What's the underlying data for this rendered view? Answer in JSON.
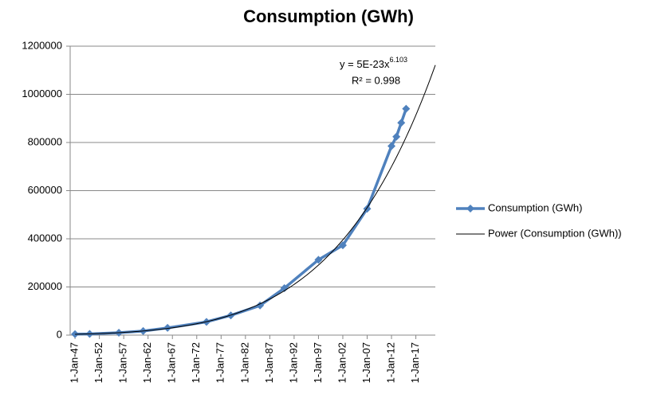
{
  "chart_data": {
    "type": "line",
    "title": "Consumption (GWh)",
    "x": [
      "1947-01-01",
      "1950-01-01",
      "1956-01-01",
      "1961-01-01",
      "1966-01-01",
      "1974-01-01",
      "1979-01-01",
      "1985-01-01",
      "1990-01-01",
      "1997-01-01",
      "2002-01-01",
      "2007-01-01",
      "2012-01-01",
      "2013-01-01",
      "2014-01-01",
      "2015-01-01"
    ],
    "series": [
      {
        "name": "Consumption (GWh)",
        "color": "#4f81bd",
        "values": [
          4000,
          5000,
          10000,
          17000,
          30000,
          55000,
          82000,
          123000,
          195000,
          313000,
          373000,
          525000,
          785000,
          824000,
          882000,
          940000
        ]
      }
    ],
    "trendline": {
      "name": "Power (Consumption (GWh))",
      "color": "#000000",
      "equation": "y = 5E-23x",
      "exponent": "6.103",
      "r_squared": "R² = 0.998"
    },
    "xlim": [
      "1946-01-01",
      "2021-01-01"
    ],
    "xticks": [
      {
        "value": "1947-01-01",
        "label": "1-Jan-47"
      },
      {
        "value": "1952-01-01",
        "label": "1-Jan-52"
      },
      {
        "value": "1957-01-01",
        "label": "1-Jan-57"
      },
      {
        "value": "1962-01-01",
        "label": "1-Jan-62"
      },
      {
        "value": "1967-01-01",
        "label": "1-Jan-67"
      },
      {
        "value": "1972-01-01",
        "label": "1-Jan-72"
      },
      {
        "value": "1977-01-01",
        "label": "1-Jan-77"
      },
      {
        "value": "1982-01-01",
        "label": "1-Jan-82"
      },
      {
        "value": "1987-01-01",
        "label": "1-Jan-87"
      },
      {
        "value": "1992-01-01",
        "label": "1-Jan-92"
      },
      {
        "value": "1997-01-01",
        "label": "1-Jan-97"
      },
      {
        "value": "2002-01-01",
        "label": "1-Jan-02"
      },
      {
        "value": "2007-01-01",
        "label": "1-Jan-07"
      },
      {
        "value": "2012-01-01",
        "label": "1-Jan-12"
      },
      {
        "value": "2017-01-01",
        "label": "1-Jan-17"
      }
    ],
    "ylim": [
      0,
      1200000
    ],
    "yticks": [
      0,
      200000,
      400000,
      600000,
      800000,
      1000000,
      1200000
    ],
    "grid": true,
    "legend": "right"
  }
}
